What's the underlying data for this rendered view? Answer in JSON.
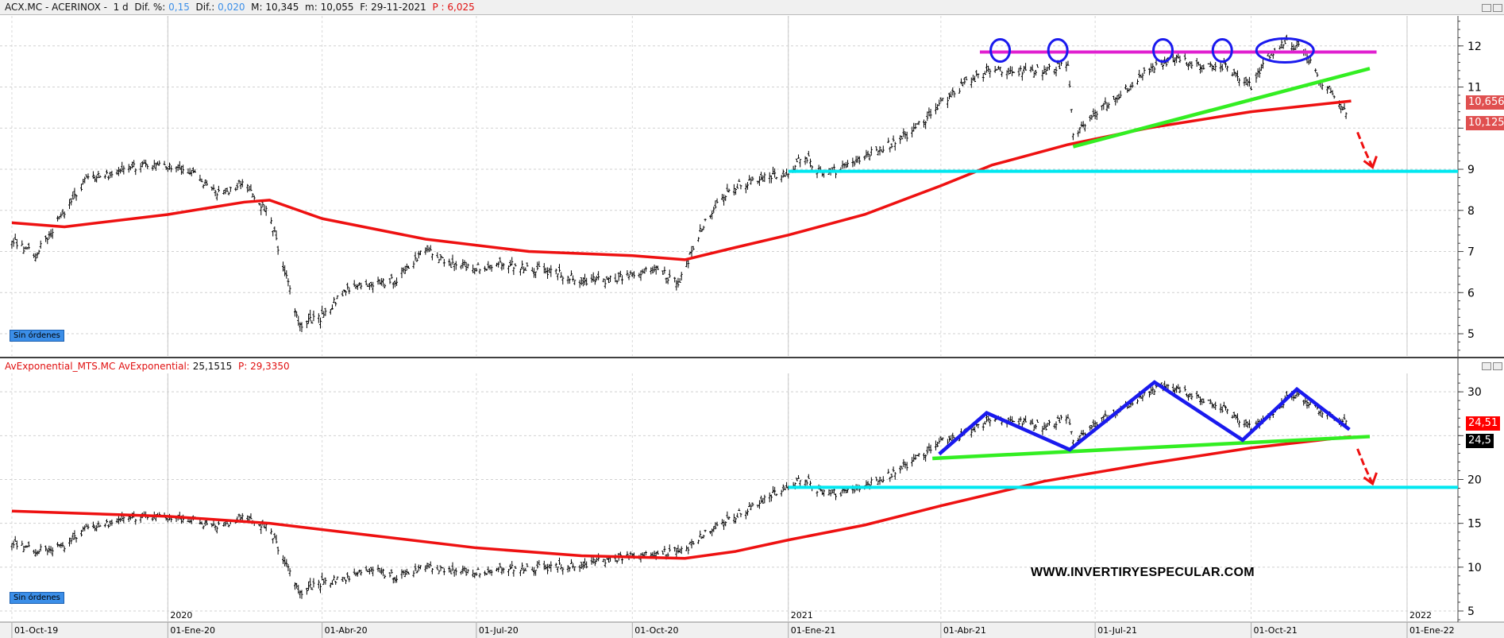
{
  "header": {
    "symbol": "ACX.MC - ACERINOX -",
    "period": "1 d",
    "dif_pct_label": "Dif. %:",
    "dif_pct": "0,15",
    "dif_label": "Dif.:",
    "dif": "0,020",
    "max_label": "M:",
    "max": "10,345",
    "min_label": "m:",
    "min": "10,055",
    "date_label": "F:",
    "date": "29-11-2021",
    "p_label": "P :",
    "p": "6,025"
  },
  "lower_header": {
    "name": "AvExponential_MTS.MC AvExponential:",
    "value": "25,1515",
    "p_label": "P:",
    "p": "29,3350"
  },
  "badges": {
    "top": "Sin órdenes",
    "bottom": "Sin órdenes"
  },
  "price_labels": {
    "top_ema": "10,656",
    "top_last": "10,125",
    "bottom_ema": "24,51",
    "bottom_last": "24,5"
  },
  "watermark": "WWW.INVERTIRYESPECULAR.COM",
  "colors": {
    "ema": "#ee1111",
    "resistance": "#e020d0",
    "trend": "#33ee22",
    "support": "#00e8f0",
    "zigzag": "#1a1aee",
    "arrow": "#ee1111",
    "label_red": "#e05050"
  },
  "chart_data": [
    {
      "type": "line",
      "title": "ACX.MC - ACERINOX",
      "ylim": [
        4.46,
        12.73
      ],
      "yticks": [
        5,
        6,
        7,
        8,
        9,
        10,
        11,
        12
      ],
      "ytick_labels": [
        "5",
        "6",
        "7",
        "8",
        "9",
        "",
        "11",
        "12"
      ],
      "grid": true,
      "series": [
        {
          "style": "ohlc-bars",
          "points": [
            [
              "2019-10-01",
              7.3
            ],
            [
              "2019-10-15",
              6.9
            ],
            [
              "2019-11-01",
              8.0
            ],
            [
              "2019-11-15",
              8.8
            ],
            [
              "2019-12-01",
              8.9
            ],
            [
              "2019-12-15",
              9.1
            ],
            [
              "2020-01-01",
              9.1
            ],
            [
              "2020-01-15",
              8.9
            ],
            [
              "2020-02-01",
              8.4
            ],
            [
              "2020-02-15",
              8.7
            ],
            [
              "2020-03-01",
              7.9
            ],
            [
              "2020-03-10",
              6.5
            ],
            [
              "2020-03-18",
              5.2
            ],
            [
              "2020-04-01",
              5.4
            ],
            [
              "2020-04-15",
              6.1
            ],
            [
              "2020-05-01",
              6.2
            ],
            [
              "2020-05-15",
              6.3
            ],
            [
              "2020-06-01",
              7.1
            ],
            [
              "2020-06-15",
              6.7
            ],
            [
              "2020-07-01",
              6.6
            ],
            [
              "2020-07-15",
              6.7
            ],
            [
              "2020-08-01",
              6.6
            ],
            [
              "2020-08-15",
              6.5
            ],
            [
              "2020-09-01",
              6.3
            ],
            [
              "2020-09-15",
              6.3
            ],
            [
              "2020-10-01",
              6.4
            ],
            [
              "2020-10-15",
              6.6
            ],
            [
              "2020-10-28",
              6.2
            ],
            [
              "2020-11-01",
              6.6
            ],
            [
              "2020-11-10",
              7.5
            ],
            [
              "2020-11-20",
              8.2
            ],
            [
              "2020-12-01",
              8.6
            ],
            [
              "2020-12-15",
              8.8
            ],
            [
              "2021-01-01",
              8.9
            ],
            [
              "2021-01-10",
              9.4
            ],
            [
              "2021-01-20",
              8.9
            ],
            [
              "2021-02-01",
              9.0
            ],
            [
              "2021-02-15",
              9.3
            ],
            [
              "2021-03-01",
              9.6
            ],
            [
              "2021-03-15",
              9.9
            ],
            [
              "2021-04-01",
              10.6
            ],
            [
              "2021-04-15",
              11.1
            ],
            [
              "2021-05-01",
              11.4
            ],
            [
              "2021-05-15",
              11.4
            ],
            [
              "2021-06-01",
              11.4
            ],
            [
              "2021-06-15",
              11.6
            ],
            [
              "2021-06-18",
              9.8
            ],
            [
              "2021-07-01",
              10.4
            ],
            [
              "2021-07-15",
              10.8
            ],
            [
              "2021-08-01",
              11.4
            ],
            [
              "2021-08-15",
              11.7
            ],
            [
              "2021-09-01",
              11.5
            ],
            [
              "2021-09-15",
              11.5
            ],
            [
              "2021-10-01",
              11.0
            ],
            [
              "2021-10-10",
              11.7
            ],
            [
              "2021-10-20",
              12.1
            ],
            [
              "2021-11-01",
              11.9
            ],
            [
              "2021-11-10",
              11.2
            ],
            [
              "2021-11-20",
              10.8
            ],
            [
              "2021-11-29",
              10.1
            ]
          ]
        },
        {
          "style": "ema",
          "points": [
            [
              "2019-10-01",
              7.7
            ],
            [
              "2019-11-01",
              7.6
            ],
            [
              "2020-01-01",
              7.9
            ],
            [
              "2020-02-15",
              8.2
            ],
            [
              "2020-03-01",
              8.25
            ],
            [
              "2020-04-01",
              7.8
            ],
            [
              "2020-06-01",
              7.3
            ],
            [
              "2020-08-01",
              7.0
            ],
            [
              "2020-10-01",
              6.9
            ],
            [
              "2020-11-01",
              6.8
            ],
            [
              "2020-12-01",
              7.1
            ],
            [
              "2021-01-01",
              7.4
            ],
            [
              "2021-02-15",
              7.9
            ],
            [
              "2021-04-01",
              8.6
            ],
            [
              "2021-05-01",
              9.1
            ],
            [
              "2021-06-15",
              9.6
            ],
            [
              "2021-08-01",
              10.0
            ],
            [
              "2021-10-01",
              10.4
            ],
            [
              "2021-11-29",
              10.66
            ]
          ]
        }
      ],
      "annotations": {
        "resistance": {
          "from": "2021-04-24",
          "to": "2021-12-14",
          "value": 11.85
        },
        "trendline": {
          "from": [
            "2021-06-18",
            9.55
          ],
          "to": [
            "2021-12-10",
            11.45
          ]
        },
        "support": {
          "from": "2021-01-01",
          "value": 8.95
        },
        "circles": [
          "2021-05-06",
          "2021-06-09",
          "2021-08-10",
          "2021-09-14",
          "2021-10-21"
        ]
      }
    },
    {
      "type": "line",
      "title": "AvExponential_MTS.MC",
      "ylim": [
        3.73,
        32.1
      ],
      "yticks": [
        5,
        10,
        15,
        20,
        25,
        30
      ],
      "ytick_labels": [
        "5",
        "10",
        "15",
        "20",
        "",
        "30"
      ],
      "grid": true,
      "series": [
        {
          "style": "ohlc-bars",
          "points": [
            [
              "2019-10-01",
              12.9
            ],
            [
              "2019-10-15",
              11.8
            ],
            [
              "2019-11-01",
              12.5
            ],
            [
              "2019-11-15",
              14.5
            ],
            [
              "2019-12-01",
              15.2
            ],
            [
              "2019-12-15",
              15.8
            ],
            [
              "2020-01-01",
              15.8
            ],
            [
              "2020-01-15",
              15.2
            ],
            [
              "2020-02-01",
              14.7
            ],
            [
              "2020-02-15",
              15.9
            ],
            [
              "2020-03-01",
              14.5
            ],
            [
              "2020-03-10",
              10.5
            ],
            [
              "2020-03-18",
              7.0
            ],
            [
              "2020-04-01",
              8.2
            ],
            [
              "2020-04-15",
              8.8
            ],
            [
              "2020-05-01",
              9.8
            ],
            [
              "2020-05-15",
              8.8
            ],
            [
              "2020-06-01",
              10.2
            ],
            [
              "2020-06-15",
              9.6
            ],
            [
              "2020-07-01",
              9.4
            ],
            [
              "2020-07-15",
              9.8
            ],
            [
              "2020-08-01",
              9.9
            ],
            [
              "2020-08-15",
              10.0
            ],
            [
              "2020-09-01",
              10.3
            ],
            [
              "2020-09-15",
              10.8
            ],
            [
              "2020-10-01",
              11.2
            ],
            [
              "2020-10-15",
              11.5
            ],
            [
              "2020-11-01",
              12.0
            ],
            [
              "2020-11-10",
              13.5
            ],
            [
              "2020-11-20",
              14.8
            ],
            [
              "2020-12-01",
              15.9
            ],
            [
              "2020-12-15",
              17.5
            ],
            [
              "2021-01-01",
              19.3
            ],
            [
              "2021-01-10",
              20.3
            ],
            [
              "2021-01-20",
              18.6
            ],
            [
              "2021-02-01",
              18.4
            ],
            [
              "2021-02-15",
              19.2
            ],
            [
              "2021-03-01",
              20.5
            ],
            [
              "2021-03-15",
              22.0
            ],
            [
              "2021-04-01",
              24.3
            ],
            [
              "2021-04-15",
              25.2
            ],
            [
              "2021-05-01",
              26.8
            ],
            [
              "2021-05-15",
              26.8
            ],
            [
              "2021-06-01",
              26.0
            ],
            [
              "2021-06-15",
              27.3
            ],
            [
              "2021-06-18",
              24.2
            ],
            [
              "2021-07-01",
              26.5
            ],
            [
              "2021-07-15",
              28.0
            ],
            [
              "2021-08-01",
              29.8
            ],
            [
              "2021-08-10",
              30.8
            ],
            [
              "2021-09-01",
              29.2
            ],
            [
              "2021-09-15",
              28.0
            ],
            [
              "2021-10-01",
              25.8
            ],
            [
              "2021-10-10",
              27.0
            ],
            [
              "2021-10-25",
              29.8
            ],
            [
              "2021-11-10",
              28.0
            ],
            [
              "2021-11-29",
              26.3
            ]
          ]
        },
        {
          "style": "ema",
          "points": [
            [
              "2019-10-01",
              16.4
            ],
            [
              "2020-01-01",
              15.8
            ],
            [
              "2020-03-01",
              15.0
            ],
            [
              "2020-05-01",
              13.6
            ],
            [
              "2020-07-01",
              12.2
            ],
            [
              "2020-09-01",
              11.3
            ],
            [
              "2020-11-01",
              11.0
            ],
            [
              "2020-12-01",
              11.8
            ],
            [
              "2021-01-01",
              13.1
            ],
            [
              "2021-02-15",
              14.8
            ],
            [
              "2021-04-01",
              17.0
            ],
            [
              "2021-06-01",
              19.8
            ],
            [
              "2021-08-01",
              21.8
            ],
            [
              "2021-10-01",
              23.6
            ],
            [
              "2021-11-29",
              24.9
            ]
          ]
        }
      ],
      "annotations": {
        "zigzag": [
          [
            "2021-03-31",
            22.9
          ],
          [
            "2021-04-28",
            27.6
          ],
          [
            "2021-06-16",
            23.4
          ],
          [
            "2021-08-05",
            31.1
          ],
          [
            "2021-09-26",
            24.5
          ],
          [
            "2021-10-28",
            30.3
          ],
          [
            "2021-11-28",
            25.7
          ]
        ],
        "trendline": {
          "from": [
            "2021-03-27",
            22.4
          ],
          "to": [
            "2021-12-10",
            24.9
          ]
        },
        "support": {
          "from": "2021-01-01",
          "value": 19.1
        }
      }
    }
  ],
  "x_axis": {
    "xlim": [
      "2019-09-24",
      "2022-01-31"
    ],
    "ticks": [
      {
        "date": "2019-10-01",
        "label": "01-Oct-19"
      },
      {
        "date": "2020-01-01",
        "label": "01-Ene-20"
      },
      {
        "date": "2020-04-01",
        "label": "01-Abr-20"
      },
      {
        "date": "2020-07-01",
        "label": "01-Jul-20"
      },
      {
        "date": "2020-10-01",
        "label": "01-Oct-20"
      },
      {
        "date": "2021-01-01",
        "label": "01-Ene-21"
      },
      {
        "date": "2021-04-01",
        "label": "01-Abr-21"
      },
      {
        "date": "2021-07-01",
        "label": "01-Jul-21"
      },
      {
        "date": "2021-10-01",
        "label": "01-Oct-21"
      },
      {
        "date": "2022-01-01",
        "label": "01-Ene-22"
      }
    ],
    "years": [
      {
        "date": "2020-01-01",
        "label": "2020"
      },
      {
        "date": "2021-01-01",
        "label": "2021"
      },
      {
        "date": "2022-01-01",
        "label": "2022"
      }
    ]
  }
}
